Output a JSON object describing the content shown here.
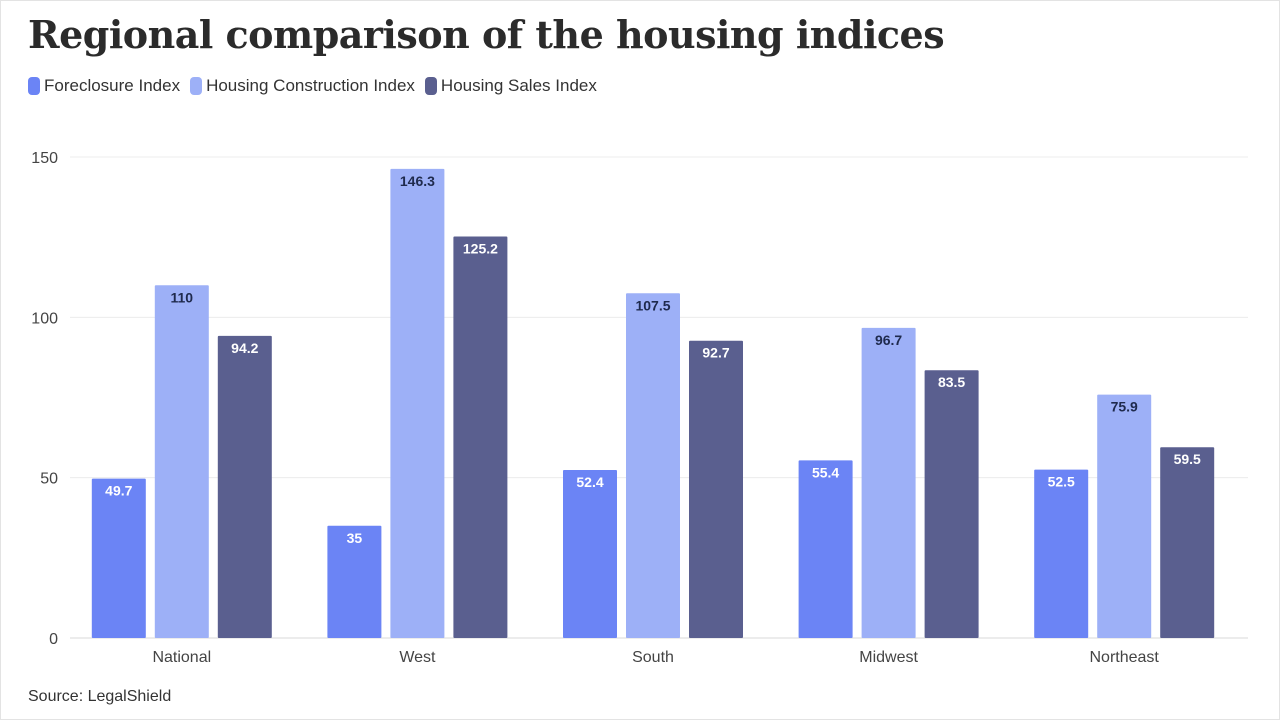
{
  "title": "Regional comparison of the housing indices",
  "source": "Source: LegalShield",
  "colors": {
    "foreclosure": "#6b84f5",
    "construction": "#9db0f7",
    "sales": "#5a5f8f",
    "grid": "#ececec"
  },
  "chart_data": {
    "type": "bar",
    "title": "Regional comparison of the housing indices",
    "xlabel": "",
    "ylabel": "",
    "categories": [
      "National",
      "West",
      "South",
      "Midwest",
      "Northeast"
    ],
    "series": [
      {
        "name": "Foreclosure Index",
        "color": "#6b84f5",
        "label_color": "#ffffff",
        "values": [
          49.7,
          35,
          52.4,
          55.4,
          52.5
        ]
      },
      {
        "name": "Housing Construction Index",
        "color": "#9db0f7",
        "label_color": "#1f2a4d",
        "values": [
          110,
          146.3,
          107.5,
          96.7,
          75.9
        ]
      },
      {
        "name": "Housing Sales Index",
        "color": "#5a5f8f",
        "label_color": "#ffffff",
        "values": [
          94.2,
          125.2,
          92.7,
          83.5,
          59.5
        ]
      }
    ],
    "ylim": [
      0,
      150
    ],
    "yticks": [
      0,
      50,
      100,
      150
    ],
    "grid": true,
    "legend": "top-left"
  }
}
